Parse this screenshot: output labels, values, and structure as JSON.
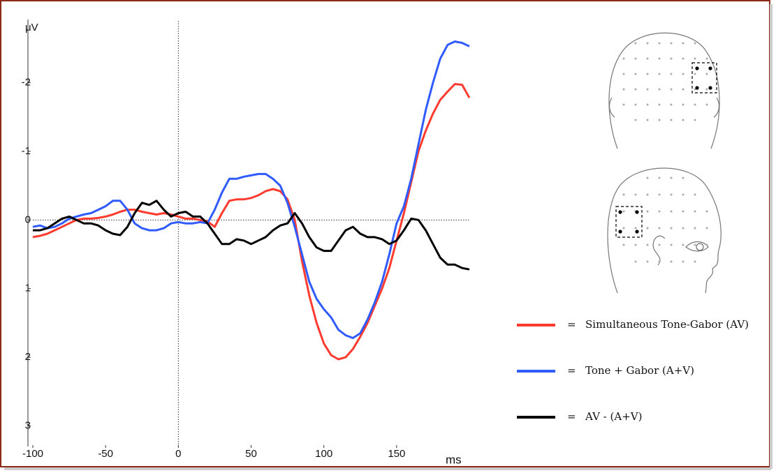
{
  "chart_data": {
    "type": "line",
    "y_axis_label": "μV",
    "x_axis_label": "ms",
    "xlim": [
      -100,
      200
    ],
    "xticks": [
      -100,
      -50,
      0,
      50,
      100,
      150
    ],
    "ylim": [
      -2.9,
      3.3
    ],
    "y_inverted": true,
    "yticks": [
      -2,
      -1,
      0,
      1,
      2,
      3
    ],
    "zero_lines": true,
    "legend_separator": "=",
    "x": [
      -100,
      -95,
      -90,
      -85,
      -80,
      -75,
      -70,
      -65,
      -60,
      -55,
      -50,
      -45,
      -40,
      -35,
      -30,
      -25,
      -20,
      -15,
      -10,
      -5,
      0,
      5,
      10,
      15,
      20,
      25,
      30,
      35,
      40,
      45,
      50,
      55,
      60,
      65,
      70,
      75,
      80,
      85,
      90,
      95,
      100,
      105,
      110,
      115,
      120,
      125,
      130,
      135,
      140,
      145,
      150,
      155,
      160,
      165,
      170,
      175,
      180,
      185,
      190,
      195,
      200
    ],
    "series": [
      {
        "name": "Simultaneous Tone-Gabor (AV)",
        "color": "#ff3b2f",
        "values": [
          0.25,
          0.23,
          0.2,
          0.15,
          0.1,
          0.05,
          0.0,
          -0.02,
          -0.02,
          -0.03,
          -0.05,
          -0.08,
          -0.12,
          -0.15,
          -0.15,
          -0.12,
          -0.1,
          -0.08,
          -0.1,
          -0.08,
          -0.05,
          -0.02,
          -0.02,
          0.0,
          0.02,
          0.1,
          -0.1,
          -0.28,
          -0.3,
          -0.3,
          -0.32,
          -0.36,
          -0.42,
          -0.45,
          -0.42,
          -0.3,
          0.0,
          0.6,
          1.1,
          1.5,
          1.8,
          1.97,
          2.03,
          2.0,
          1.88,
          1.7,
          1.5,
          1.25,
          1.0,
          0.7,
          0.3,
          -0.1,
          -0.55,
          -1.0,
          -1.3,
          -1.55,
          -1.75,
          -1.87,
          -1.98,
          -1.97,
          -1.78
        ]
      },
      {
        "name": "Tone + Gabor (A+V)",
        "color": "#2f5bff",
        "values": [
          0.1,
          0.08,
          0.12,
          0.1,
          0.05,
          -0.02,
          -0.05,
          -0.08,
          -0.1,
          -0.15,
          -0.2,
          -0.28,
          -0.28,
          -0.15,
          0.05,
          0.12,
          0.15,
          0.15,
          0.12,
          0.05,
          0.03,
          0.05,
          0.05,
          0.03,
          0.05,
          -0.15,
          -0.4,
          -0.6,
          -0.6,
          -0.63,
          -0.65,
          -0.67,
          -0.67,
          -0.6,
          -0.5,
          -0.25,
          0.1,
          0.5,
          0.9,
          1.15,
          1.3,
          1.42,
          1.6,
          1.68,
          1.72,
          1.65,
          1.45,
          1.2,
          0.9,
          0.5,
          0.05,
          -0.2,
          -0.6,
          -1.1,
          -1.6,
          -2.0,
          -2.35,
          -2.55,
          -2.6,
          -2.58,
          -2.53
        ]
      },
      {
        "name": "AV - (A+V)",
        "color": "#000000",
        "values": [
          0.15,
          0.15,
          0.12,
          0.05,
          -0.02,
          -0.05,
          0.0,
          0.05,
          0.05,
          0.08,
          0.15,
          0.2,
          0.22,
          0.1,
          -0.1,
          -0.25,
          -0.22,
          -0.28,
          -0.15,
          -0.05,
          -0.1,
          -0.12,
          -0.05,
          -0.05,
          0.05,
          0.2,
          0.35,
          0.35,
          0.28,
          0.3,
          0.35,
          0.3,
          0.25,
          0.15,
          0.08,
          0.05,
          -0.1,
          0.05,
          0.25,
          0.4,
          0.45,
          0.45,
          0.3,
          0.15,
          0.1,
          0.2,
          0.25,
          0.25,
          0.28,
          0.35,
          0.3,
          0.15,
          -0.02,
          0.0,
          0.15,
          0.35,
          0.55,
          0.65,
          0.65,
          0.7,
          0.72
        ]
      }
    ]
  }
}
